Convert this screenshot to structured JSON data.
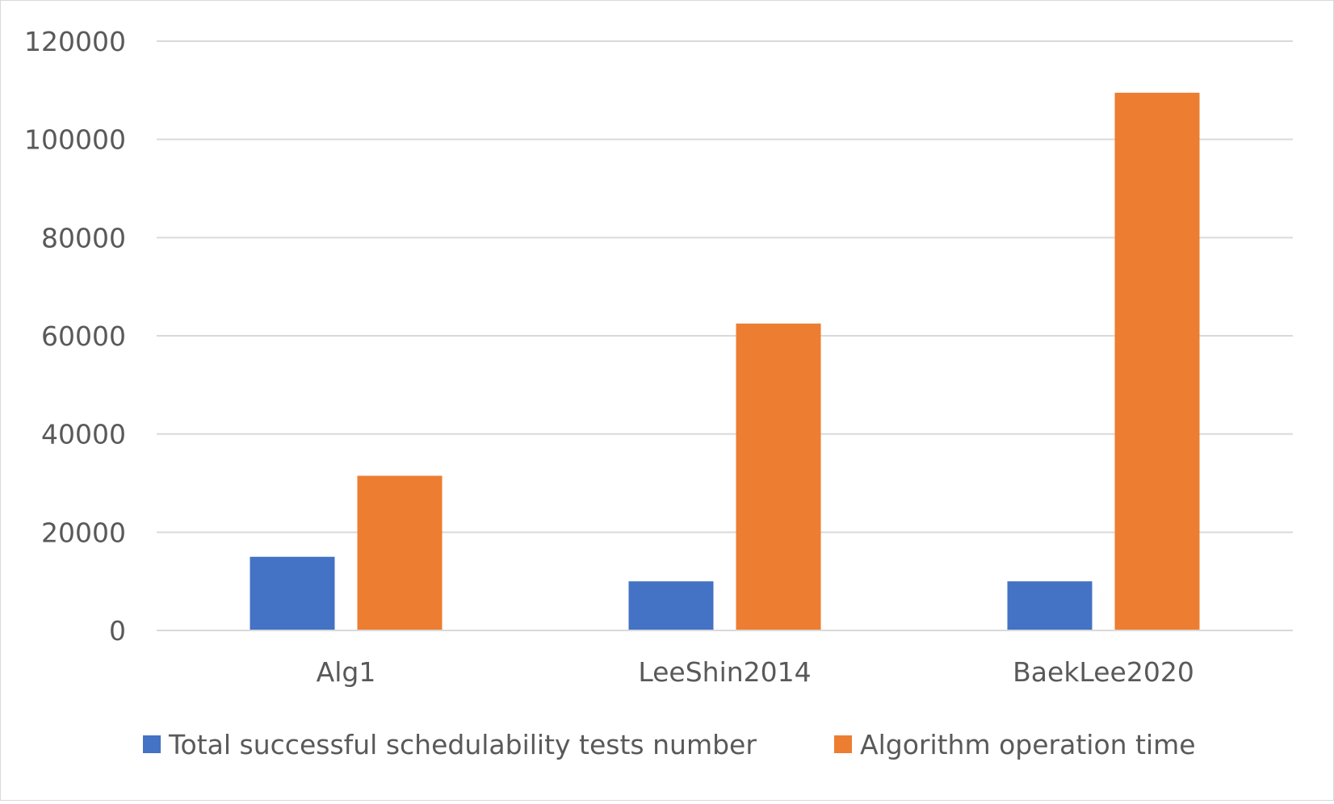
{
  "chart_data": {
    "type": "bar",
    "title": "",
    "xlabel": "",
    "ylabel": "",
    "categories": [
      "Alg1",
      "LeeShin2014",
      "BaekLee2020"
    ],
    "series": [
      {
        "name": "Total successful schedulability tests number",
        "color": "#4472C4",
        "values": [
          15000,
          10000,
          10000
        ]
      },
      {
        "name": "Algorithm operation time",
        "color": "#ED7D31",
        "values": [
          31500,
          62500,
          109500
        ]
      }
    ],
    "ylim": [
      0,
      120000
    ],
    "yticks": [
      0,
      20000,
      40000,
      60000,
      80000,
      100000,
      120000
    ],
    "ytick_labels": [
      "0",
      "20000",
      "40000",
      "60000",
      "80000",
      "100000",
      "120000"
    ],
    "grid": true,
    "legend": "bottom"
  }
}
